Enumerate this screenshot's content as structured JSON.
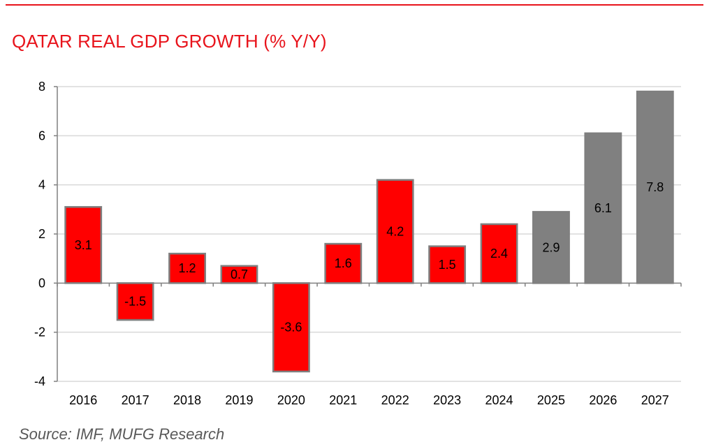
{
  "chart_data": {
    "type": "bar",
    "title": "QATAR REAL GDP GROWTH (% Y/Y)",
    "categories": [
      "2016",
      "2017",
      "2018",
      "2019",
      "2020",
      "2021",
      "2022",
      "2023",
      "2024",
      "2025",
      "2026",
      "2027"
    ],
    "values": [
      3.1,
      -1.5,
      1.2,
      0.7,
      -3.6,
      1.6,
      4.2,
      1.5,
      2.4,
      2.9,
      6.1,
      7.8
    ],
    "data_labels": [
      "3.1",
      "-1.5",
      "1.2",
      "0.7",
      "-3.6",
      "1.6",
      "4.2",
      "1.5",
      "2.4",
      "2.9",
      "6.1",
      "7.8"
    ],
    "series_type": [
      "actual",
      "actual",
      "actual",
      "actual",
      "actual",
      "actual",
      "actual",
      "actual",
      "actual",
      "forecast",
      "forecast",
      "forecast"
    ],
    "ylim": [
      -4,
      8
    ],
    "yticks": [
      -4,
      -2,
      0,
      2,
      4,
      6,
      8
    ],
    "ytick_labels": [
      "-4",
      "-2",
      "0",
      "2",
      "4",
      "6",
      "8"
    ],
    "xlabel": "",
    "ylabel": "",
    "grid": true,
    "colors": {
      "actual": "#ff0000",
      "forecast": "#808080",
      "bar_edge": "#7f7f7f",
      "grid": "#d9d9d9",
      "axis": "#808080",
      "accent": "#e8131b"
    }
  },
  "source": "Source: IMF, MUFG Research"
}
